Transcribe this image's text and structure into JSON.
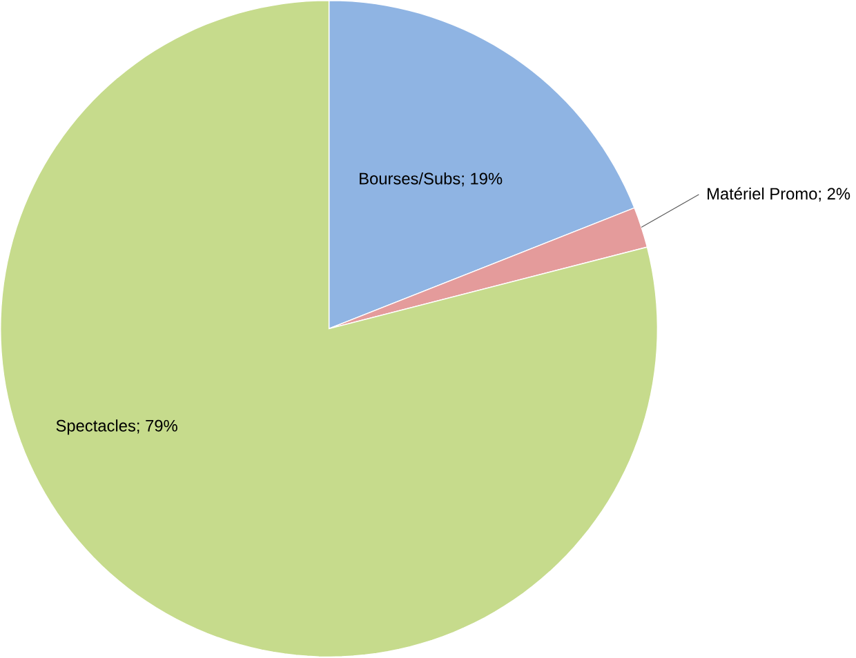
{
  "chart_data": {
    "type": "pie",
    "categories": [
      "Bourses/Subs; 19%",
      "Matériel Promo; 2%",
      "Spectacles; 79%"
    ],
    "values": [
      19,
      2,
      79
    ],
    "colors": [
      "#8fb4e3",
      "#e49b9b",
      "#c6db8c"
    ]
  }
}
